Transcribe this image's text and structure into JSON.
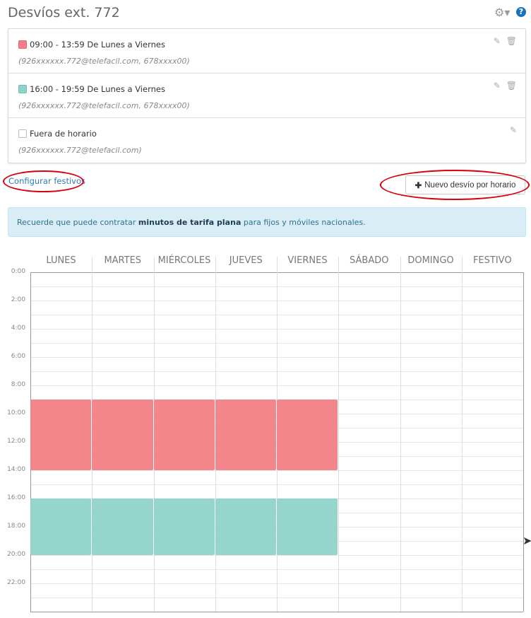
{
  "header": {
    "title": "Desvíos ext. 772",
    "settings_icon": "gear-icon",
    "help_icon": "question-circle-icon"
  },
  "rules": [
    {
      "label": "09:00 - 13:59 De Lunes a Viernes",
      "destinations": "(926xxxxxx.772@telefacil.com, 678xxxx00)",
      "color": "#f27f85",
      "deletable": true
    },
    {
      "label": "16:00 - 19:59 De Lunes a Viernes",
      "destinations": "(926xxxxxx.772@telefacil.com, 678xxxx00)",
      "color": "#8fd3c8",
      "deletable": true
    },
    {
      "label": "Fuera de horario",
      "destinations": "(926xxxxxx.772@telefacil.com)",
      "color": "#ffffff",
      "deletable": false
    }
  ],
  "links": {
    "holidays": "Configurar festivos",
    "new_rule": "Nuevo desvío por horario"
  },
  "alert": {
    "before": "Recuerde que puede contratar ",
    "bold": "minutos de tarifa plana",
    "after": " para fijos y móviles nacionales."
  },
  "calendar": {
    "days": [
      "LUNES",
      "MARTES",
      "MIÉRCOLES",
      "JUEVES",
      "VIERNES",
      "SÁBADO",
      "DOMINGO",
      "FESTIVO"
    ],
    "hour_labels": [
      "0:00",
      "2:00",
      "4:00",
      "6:00",
      "8:00",
      "10:00",
      "12:00",
      "14:00",
      "16:00",
      "18:00",
      "20:00",
      "22:00"
    ],
    "blocks": [
      {
        "rule": 0,
        "start_hour": 9,
        "end_hour": 14,
        "days": [
          0,
          1,
          2,
          3,
          4
        ]
      },
      {
        "rule": 1,
        "start_hour": 16,
        "end_hour": 20,
        "days": [
          0,
          1,
          2,
          3,
          4
        ]
      }
    ]
  }
}
